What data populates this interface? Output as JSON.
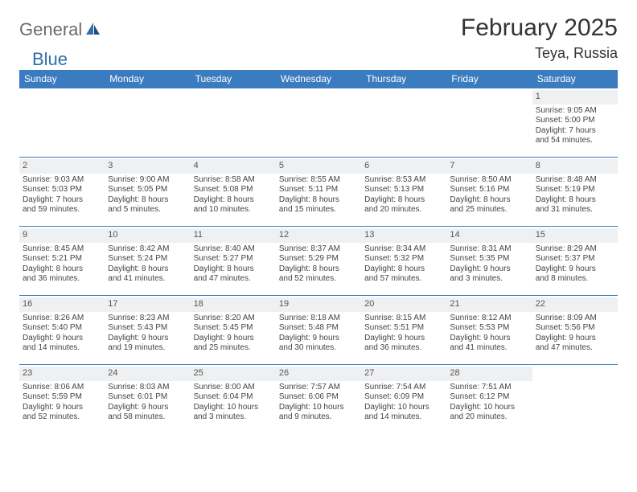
{
  "brand": {
    "general": "General",
    "blue": "Blue"
  },
  "colors": {
    "header_bg": "#3b7bbf",
    "header_fg": "#ffffff",
    "daynum_bg": "#eef0f2",
    "border": "#3b7bbf",
    "title": "#333333",
    "body_text": "#444444",
    "logo_gray": "#6a6a6a",
    "logo_blue": "#2f6fab"
  },
  "title": "February 2025",
  "location": "Teya, Russia",
  "weekdays": [
    "Sunday",
    "Monday",
    "Tuesday",
    "Wednesday",
    "Thursday",
    "Friday",
    "Saturday"
  ],
  "weeks": [
    [
      null,
      null,
      null,
      null,
      null,
      null,
      {
        "n": "1",
        "sunrise": "Sunrise: 9:05 AM",
        "sunset": "Sunset: 5:00 PM",
        "day1": "Daylight: 7 hours",
        "day2": "and 54 minutes."
      }
    ],
    [
      {
        "n": "2",
        "sunrise": "Sunrise: 9:03 AM",
        "sunset": "Sunset: 5:03 PM",
        "day1": "Daylight: 7 hours",
        "day2": "and 59 minutes."
      },
      {
        "n": "3",
        "sunrise": "Sunrise: 9:00 AM",
        "sunset": "Sunset: 5:05 PM",
        "day1": "Daylight: 8 hours",
        "day2": "and 5 minutes."
      },
      {
        "n": "4",
        "sunrise": "Sunrise: 8:58 AM",
        "sunset": "Sunset: 5:08 PM",
        "day1": "Daylight: 8 hours",
        "day2": "and 10 minutes."
      },
      {
        "n": "5",
        "sunrise": "Sunrise: 8:55 AM",
        "sunset": "Sunset: 5:11 PM",
        "day1": "Daylight: 8 hours",
        "day2": "and 15 minutes."
      },
      {
        "n": "6",
        "sunrise": "Sunrise: 8:53 AM",
        "sunset": "Sunset: 5:13 PM",
        "day1": "Daylight: 8 hours",
        "day2": "and 20 minutes."
      },
      {
        "n": "7",
        "sunrise": "Sunrise: 8:50 AM",
        "sunset": "Sunset: 5:16 PM",
        "day1": "Daylight: 8 hours",
        "day2": "and 25 minutes."
      },
      {
        "n": "8",
        "sunrise": "Sunrise: 8:48 AM",
        "sunset": "Sunset: 5:19 PM",
        "day1": "Daylight: 8 hours",
        "day2": "and 31 minutes."
      }
    ],
    [
      {
        "n": "9",
        "sunrise": "Sunrise: 8:45 AM",
        "sunset": "Sunset: 5:21 PM",
        "day1": "Daylight: 8 hours",
        "day2": "and 36 minutes."
      },
      {
        "n": "10",
        "sunrise": "Sunrise: 8:42 AM",
        "sunset": "Sunset: 5:24 PM",
        "day1": "Daylight: 8 hours",
        "day2": "and 41 minutes."
      },
      {
        "n": "11",
        "sunrise": "Sunrise: 8:40 AM",
        "sunset": "Sunset: 5:27 PM",
        "day1": "Daylight: 8 hours",
        "day2": "and 47 minutes."
      },
      {
        "n": "12",
        "sunrise": "Sunrise: 8:37 AM",
        "sunset": "Sunset: 5:29 PM",
        "day1": "Daylight: 8 hours",
        "day2": "and 52 minutes."
      },
      {
        "n": "13",
        "sunrise": "Sunrise: 8:34 AM",
        "sunset": "Sunset: 5:32 PM",
        "day1": "Daylight: 8 hours",
        "day2": "and 57 minutes."
      },
      {
        "n": "14",
        "sunrise": "Sunrise: 8:31 AM",
        "sunset": "Sunset: 5:35 PM",
        "day1": "Daylight: 9 hours",
        "day2": "and 3 minutes."
      },
      {
        "n": "15",
        "sunrise": "Sunrise: 8:29 AM",
        "sunset": "Sunset: 5:37 PM",
        "day1": "Daylight: 9 hours",
        "day2": "and 8 minutes."
      }
    ],
    [
      {
        "n": "16",
        "sunrise": "Sunrise: 8:26 AM",
        "sunset": "Sunset: 5:40 PM",
        "day1": "Daylight: 9 hours",
        "day2": "and 14 minutes."
      },
      {
        "n": "17",
        "sunrise": "Sunrise: 8:23 AM",
        "sunset": "Sunset: 5:43 PM",
        "day1": "Daylight: 9 hours",
        "day2": "and 19 minutes."
      },
      {
        "n": "18",
        "sunrise": "Sunrise: 8:20 AM",
        "sunset": "Sunset: 5:45 PM",
        "day1": "Daylight: 9 hours",
        "day2": "and 25 minutes."
      },
      {
        "n": "19",
        "sunrise": "Sunrise: 8:18 AM",
        "sunset": "Sunset: 5:48 PM",
        "day1": "Daylight: 9 hours",
        "day2": "and 30 minutes."
      },
      {
        "n": "20",
        "sunrise": "Sunrise: 8:15 AM",
        "sunset": "Sunset: 5:51 PM",
        "day1": "Daylight: 9 hours",
        "day2": "and 36 minutes."
      },
      {
        "n": "21",
        "sunrise": "Sunrise: 8:12 AM",
        "sunset": "Sunset: 5:53 PM",
        "day1": "Daylight: 9 hours",
        "day2": "and 41 minutes."
      },
      {
        "n": "22",
        "sunrise": "Sunrise: 8:09 AM",
        "sunset": "Sunset: 5:56 PM",
        "day1": "Daylight: 9 hours",
        "day2": "and 47 minutes."
      }
    ],
    [
      {
        "n": "23",
        "sunrise": "Sunrise: 8:06 AM",
        "sunset": "Sunset: 5:59 PM",
        "day1": "Daylight: 9 hours",
        "day2": "and 52 minutes."
      },
      {
        "n": "24",
        "sunrise": "Sunrise: 8:03 AM",
        "sunset": "Sunset: 6:01 PM",
        "day1": "Daylight: 9 hours",
        "day2": "and 58 minutes."
      },
      {
        "n": "25",
        "sunrise": "Sunrise: 8:00 AM",
        "sunset": "Sunset: 6:04 PM",
        "day1": "Daylight: 10 hours",
        "day2": "and 3 minutes."
      },
      {
        "n": "26",
        "sunrise": "Sunrise: 7:57 AM",
        "sunset": "Sunset: 6:06 PM",
        "day1": "Daylight: 10 hours",
        "day2": "and 9 minutes."
      },
      {
        "n": "27",
        "sunrise": "Sunrise: 7:54 AM",
        "sunset": "Sunset: 6:09 PM",
        "day1": "Daylight: 10 hours",
        "day2": "and 14 minutes."
      },
      {
        "n": "28",
        "sunrise": "Sunrise: 7:51 AM",
        "sunset": "Sunset: 6:12 PM",
        "day1": "Daylight: 10 hours",
        "day2": "and 20 minutes."
      },
      null
    ]
  ]
}
